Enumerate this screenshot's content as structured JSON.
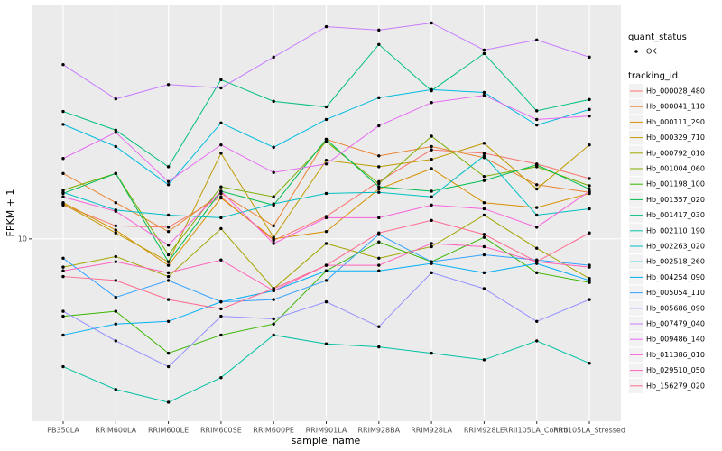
{
  "chart_data": {
    "type": "line",
    "x_label": "sample_name",
    "y_label": "FPKM + 1",
    "categories": [
      "PB350LA",
      "RRIM600LA",
      "RRIM600LE",
      "RRIM600SE",
      "RRIM600PE",
      "RRIM901LA",
      "RRIM928BA",
      "RRIM928LA",
      "RRIM928LE",
      "RRII105LA_Control",
      "RRII105LA_Stressed"
    ],
    "log_y": true,
    "ylim": [
      3,
      47
    ],
    "yticks": [
      10
    ],
    "grid": true,
    "legend_position": "right",
    "point_legend_title": "quant_status",
    "point_legend_label": "OK",
    "point_color": "#000000",
    "legend_title": "tracking_id",
    "series": [
      {
        "name": "Hb_000028_480",
        "color": "#F8766D",
        "values": [
          12.5,
          10.9,
          10.8,
          13.2,
          9.9,
          11.6,
          14.6,
          18.0,
          17.6,
          16.4,
          14.9
        ]
      },
      {
        "name": "Hb_000041_110",
        "color": "#EA8331",
        "values": [
          15.4,
          12.7,
          10.5,
          13.5,
          10.9,
          19.3,
          17.3,
          18.4,
          17.1,
          14.3,
          13.6
        ]
      },
      {
        "name": "Hb_000111_290",
        "color": "#D89000",
        "values": [
          12.7,
          10.6,
          8.4,
          13.1,
          10,
          10.5,
          13.9,
          15.9,
          12.7,
          12.3,
          13.5
        ]
      },
      {
        "name": "Hb_000329_710",
        "color": "#C09B00",
        "values": [
          12.6,
          10.4,
          8.6,
          17.6,
          10.1,
          16.8,
          16.1,
          16.9,
          18.8,
          13.9,
          18.6
        ]
      },
      {
        "name": "Hb_000792_010",
        "color": "#A3A500",
        "values": [
          8.3,
          8.9,
          7.8,
          10.7,
          7.2,
          9.7,
          8.8,
          9.5,
          11.7,
          9.4,
          7.7
        ]
      },
      {
        "name": "Hb_001004_060",
        "color": "#7CAE00",
        "values": [
          13.8,
          15.4,
          9.0,
          14.1,
          13.2,
          19.0,
          14.4,
          19.7,
          15.1,
          16.1,
          14.2
        ]
      },
      {
        "name": "Hb_001198_100",
        "color": "#39B600",
        "values": [
          6.0,
          6.2,
          4.7,
          5.3,
          5.7,
          8.1,
          9.8,
          8.6,
          10.1,
          8.0,
          7.5
        ]
      },
      {
        "name": "Hb_001357_020",
        "color": "#00BB4E",
        "values": [
          13.5,
          15.4,
          8.6,
          13.7,
          12.5,
          19.3,
          14.1,
          13.7,
          14.7,
          16.3,
          13.9
        ]
      },
      {
        "name": "Hb_001417_030",
        "color": "#00BF7D",
        "values": [
          23.2,
          20.5,
          16.1,
          28.6,
          24.8,
          23.9,
          36.1,
          26.6,
          34.0,
          23.3,
          25.1
        ]
      },
      {
        "name": "Hb_002110_190",
        "color": "#00C1A3",
        "values": [
          4.3,
          3.7,
          3.4,
          4.0,
          5.3,
          5.0,
          4.9,
          4.7,
          4.5,
          5.1,
          4.4
        ]
      },
      {
        "name": "Hb_002263_020",
        "color": "#00BFC4",
        "values": [
          13.6,
          12.1,
          11.7,
          11.5,
          12.6,
          13.5,
          13.6,
          13.2,
          17.3,
          11.7,
          12.2
        ]
      },
      {
        "name": "Hb_002518_260",
        "color": "#00BAE0",
        "values": [
          21.3,
          18.4,
          14.3,
          21.5,
          18.3,
          22.0,
          25.4,
          26.8,
          26.3,
          21.2,
          23.5
        ]
      },
      {
        "name": "Hb_004254_090",
        "color": "#00B0F6",
        "values": [
          5.3,
          5.7,
          5.8,
          6.6,
          7.1,
          8.1,
          8.1,
          8.5,
          8.0,
          8.5,
          7.6
        ]
      },
      {
        "name": "Hb_005054_110",
        "color": "#35A2FF",
        "values": [
          8.8,
          6.8,
          7.6,
          6.6,
          6.7,
          7.6,
          10.3,
          8.6,
          9.0,
          8.7,
          8.4
        ]
      },
      {
        "name": "Hb_005686_090",
        "color": "#9590FF",
        "values": [
          6.2,
          5.1,
          4.3,
          6.0,
          5.9,
          6.6,
          5.6,
          8.0,
          7.2,
          5.8,
          6.7
        ]
      },
      {
        "name": "Hb_007479_040",
        "color": "#C77CFF",
        "values": [
          31.6,
          25.2,
          27.7,
          27.1,
          33.2,
          40.6,
          39.7,
          41.6,
          34.8,
          37.2,
          33.2
        ]
      },
      {
        "name": "Hb_009486_140",
        "color": "#E76BF3",
        "values": [
          17.0,
          20.2,
          14.6,
          18.6,
          15.5,
          16.4,
          21.1,
          24.6,
          25.8,
          22.0,
          22.5
        ]
      },
      {
        "name": "Hb_011386_010",
        "color": "#FA62DB",
        "values": [
          13.2,
          12.0,
          9.6,
          13.7,
          9.7,
          11.5,
          11.5,
          12.5,
          12.2,
          10.8,
          13.7
        ]
      },
      {
        "name": "Hb_029510_050",
        "color": "#FF62BC",
        "values": [
          8.1,
          8.6,
          8.0,
          8.7,
          7.1,
          8.4,
          8.4,
          9.7,
          9.5,
          8.6,
          8.3
        ]
      },
      {
        "name": "Hb_156279_020",
        "color": "#FF6C91",
        "values": [
          7.8,
          7.6,
          6.7,
          6.3,
          7.2,
          8.4,
          10.4,
          11.3,
          10.3,
          8.6,
          10.4
        ]
      }
    ]
  }
}
